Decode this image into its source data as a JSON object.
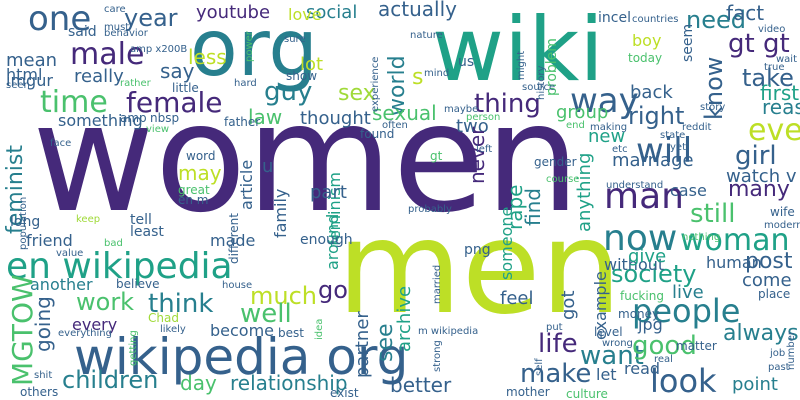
{
  "palette": {
    "dark_purple": "#45297a",
    "blue": "#35618c",
    "teal_blue": "#277f8e",
    "teal": "#1fa187",
    "green": "#4ac16d",
    "light_green": "#a0da39",
    "yellow_green": "#bddf26"
  },
  "words": [
    {
      "text": "women",
      "color": "#45297a"
    },
    {
      "text": "men",
      "color": "#bddf26"
    },
    {
      "text": "wiki",
      "color": "#1fa187"
    },
    {
      "text": "org",
      "color": "#277f8e"
    },
    {
      "text": "wikipedia org",
      "color": "#35618c"
    },
    {
      "text": "en wikipedia",
      "color": "#1fa187"
    },
    {
      "text": "one",
      "color": "#35618c"
    },
    {
      "text": "year",
      "color": "#35618c"
    },
    {
      "text": "male",
      "color": "#45297a"
    },
    {
      "text": "female",
      "color": "#45297a"
    },
    {
      "text": "time",
      "color": "#4ac16d"
    },
    {
      "text": "say",
      "color": "#35618c"
    },
    {
      "text": "less",
      "color": "#bddf26"
    },
    {
      "text": "guy",
      "color": "#277f8e"
    },
    {
      "text": "sex",
      "color": "#a0da39"
    },
    {
      "text": "world",
      "color": "#277f8e"
    },
    {
      "text": "thing",
      "color": "#45297a"
    },
    {
      "text": "way",
      "color": "#35618c"
    },
    {
      "text": "right",
      "color": "#35618c"
    },
    {
      "text": "gt gt",
      "color": "#45297a"
    },
    {
      "text": "take",
      "color": "#35618c"
    },
    {
      "text": "need",
      "color": "#277f8e"
    },
    {
      "text": "even",
      "color": "#bddf26"
    },
    {
      "text": "will",
      "color": "#35618c"
    },
    {
      "text": "man",
      "color": "#45297a"
    },
    {
      "text": "now",
      "color": "#277f8e"
    },
    {
      "text": "people",
      "color": "#277f8e"
    },
    {
      "text": "girl",
      "color": "#35618c"
    },
    {
      "text": "woman",
      "color": "#1fa187"
    },
    {
      "text": "many",
      "color": "#45297a"
    },
    {
      "text": "still",
      "color": "#4ac16d"
    },
    {
      "text": "society",
      "color": "#1fa187"
    },
    {
      "text": "post",
      "color": "#35618c"
    },
    {
      "text": "life",
      "color": "#45297a"
    },
    {
      "text": "want",
      "color": "#277f8e"
    },
    {
      "text": "look",
      "color": "#35618c"
    },
    {
      "text": "good",
      "color": "#4ac16d"
    },
    {
      "text": "make",
      "color": "#35618c"
    },
    {
      "text": "MGTOW",
      "color": "#4ac16d"
    },
    {
      "text": "work",
      "color": "#4ac16d"
    },
    {
      "text": "think",
      "color": "#277f8e"
    },
    {
      "text": "much",
      "color": "#bddf26"
    },
    {
      "text": "well",
      "color": "#4ac16d"
    },
    {
      "text": "go",
      "color": "#45297a"
    },
    {
      "text": "children",
      "color": "#277f8e"
    },
    {
      "text": "relationship",
      "color": "#277f8e"
    },
    {
      "text": "day",
      "color": "#4ac16d"
    },
    {
      "text": "better",
      "color": "#35618c"
    },
    {
      "text": "point",
      "color": "#277f8e"
    },
    {
      "text": "always",
      "color": "#277f8e"
    },
    {
      "text": "see",
      "color": "#277f8e"
    },
    {
      "text": "feminist",
      "color": "#277f8e"
    },
    {
      "text": "going",
      "color": "#35618c"
    },
    {
      "text": "youtube",
      "color": "#45297a"
    },
    {
      "text": "social",
      "color": "#277f8e"
    },
    {
      "text": "actually",
      "color": "#35618c"
    },
    {
      "text": "fact",
      "color": "#35618c"
    },
    {
      "text": "know",
      "color": "#35618c"
    },
    {
      "text": "first",
      "color": "#1fa187"
    },
    {
      "text": "reason",
      "color": "#277f8e"
    },
    {
      "text": "back",
      "color": "#35618c"
    },
    {
      "text": "law",
      "color": "#4ac16d"
    },
    {
      "text": "thought",
      "color": "#35618c"
    },
    {
      "text": "lot",
      "color": "#bddf26"
    },
    {
      "text": "sexual",
      "color": "#4ac16d"
    },
    {
      "text": "love",
      "color": "#bddf26"
    },
    {
      "text": "mean",
      "color": "#35618c"
    },
    {
      "text": "imgur",
      "color": "#35618c"
    },
    {
      "text": "html",
      "color": "#35618c"
    },
    {
      "text": "really",
      "color": "#35618c"
    },
    {
      "text": "something",
      "color": "#35618c"
    },
    {
      "text": "two",
      "color": "#35618c"
    },
    {
      "text": "may",
      "color": "#bddf26"
    },
    {
      "text": "article",
      "color": "#35618c"
    },
    {
      "text": "feminism",
      "color": "#1fa187"
    },
    {
      "text": "around",
      "color": "#1fa187"
    },
    {
      "text": "part",
      "color": "#35618c"
    },
    {
      "text": "never",
      "color": "#45297a"
    },
    {
      "text": "rape",
      "color": "#1fa187"
    },
    {
      "text": "find",
      "color": "#277f8e"
    },
    {
      "text": "someone",
      "color": "#1fa187"
    },
    {
      "text": "marriage",
      "color": "#35618c"
    },
    {
      "text": "watch v",
      "color": "#35618c"
    },
    {
      "text": "case",
      "color": "#35618c"
    },
    {
      "text": "new",
      "color": "#1fa187"
    },
    {
      "text": "anything",
      "color": "#1fa187"
    },
    {
      "text": "without",
      "color": "#35618c"
    },
    {
      "text": "human",
      "color": "#35618c"
    },
    {
      "text": "give",
      "color": "#1fa187"
    },
    {
      "text": "live",
      "color": "#277f8e"
    },
    {
      "text": "come",
      "color": "#35618c"
    },
    {
      "text": "got",
      "color": "#35618c"
    },
    {
      "text": "feel",
      "color": "#35618c"
    },
    {
      "text": "example",
      "color": "#35618c"
    },
    {
      "text": "archive",
      "color": "#1fa187"
    },
    {
      "text": "partner",
      "color": "#35618c"
    },
    {
      "text": "another",
      "color": "#277f8e"
    },
    {
      "text": "every",
      "color": "#45297a"
    },
    {
      "text": "become",
      "color": "#35618c"
    },
    {
      "text": "made",
      "color": "#35618c"
    },
    {
      "text": "friend",
      "color": "#35618c"
    },
    {
      "text": "family",
      "color": "#35618c"
    },
    {
      "text": "enough",
      "color": "#35618c"
    },
    {
      "text": "let",
      "color": "#35618c"
    },
    {
      "text": "read",
      "color": "#35618c"
    },
    {
      "text": "png",
      "color": "#35618c"
    },
    {
      "text": "jpg",
      "color": "#35618c"
    },
    {
      "text": "u",
      "color": "#35618c"
    },
    {
      "text": "s",
      "color": "#bddf26"
    },
    {
      "text": "group",
      "color": "#4ac16d"
    },
    {
      "text": "problem",
      "color": "#4ac16d"
    },
    {
      "text": "boy",
      "color": "#bddf26"
    },
    {
      "text": "seem",
      "color": "#35618c"
    },
    {
      "text": "incel",
      "color": "#35618c"
    },
    {
      "text": "today",
      "color": "#4ac16d"
    },
    {
      "text": "said",
      "color": "#35618c"
    },
    {
      "text": "must",
      "color": "#35618c"
    },
    {
      "text": "care",
      "color": "#35618c"
    },
    {
      "text": "behavior",
      "color": "#35618c"
    },
    {
      "text": "amp x200B",
      "color": "#35618c"
    },
    {
      "text": "power",
      "color": "#4ac16d"
    },
    {
      "text": "sure",
      "color": "#35618c"
    },
    {
      "text": "nature",
      "color": "#35618c"
    },
    {
      "text": "history",
      "color": "#35618c"
    },
    {
      "text": "might",
      "color": "#35618c"
    },
    {
      "text": "experience",
      "color": "#35618c"
    },
    {
      "text": "mind",
      "color": "#35618c"
    },
    {
      "text": "show",
      "color": "#35618c"
    },
    {
      "text": "us",
      "color": "#35618c"
    },
    {
      "text": "countries",
      "color": "#35618c"
    },
    {
      "text": "video",
      "color": "#35618c"
    },
    {
      "text": "true",
      "color": "#35618c"
    },
    {
      "text": "wait",
      "color": "#35618c"
    },
    {
      "text": "story",
      "color": "#35618c"
    },
    {
      "text": "reddit",
      "color": "#35618c"
    },
    {
      "text": "state",
      "color": "#35618c"
    },
    {
      "text": "making",
      "color": "#35618c"
    },
    {
      "text": "end",
      "color": "#4ac16d"
    },
    {
      "text": "source",
      "color": "#35618c"
    },
    {
      "text": "person",
      "color": "#4ac16d"
    },
    {
      "text": "maybe",
      "color": "#35618c"
    },
    {
      "text": "often",
      "color": "#35618c"
    },
    {
      "text": "found",
      "color": "#35618c"
    },
    {
      "text": "little",
      "color": "#35618c"
    },
    {
      "text": "rather",
      "color": "#4ac16d"
    },
    {
      "text": "hard",
      "color": "#35618c"
    },
    {
      "text": "seen",
      "color": "#35618c"
    },
    {
      "text": "amp",
      "color": "#35618c"
    },
    {
      "text": "nbsp",
      "color": "#35618c"
    },
    {
      "text": "father",
      "color": "#35618c"
    },
    {
      "text": "view",
      "color": "#4ac16d"
    },
    {
      "text": "face",
      "color": "#35618c"
    },
    {
      "text": "word",
      "color": "#35618c"
    },
    {
      "text": "great",
      "color": "#4ac16d"
    },
    {
      "text": "en m",
      "color": "#35618c"
    },
    {
      "text": "population",
      "color": "#35618c"
    },
    {
      "text": "long",
      "color": "#35618c"
    },
    {
      "text": "keep",
      "color": "#a0da39"
    },
    {
      "text": "tell",
      "color": "#35618c"
    },
    {
      "text": "least",
      "color": "#35618c"
    },
    {
      "text": "bad",
      "color": "#4ac16d"
    },
    {
      "text": "value",
      "color": "#35618c"
    },
    {
      "text": "believe",
      "color": "#35618c"
    },
    {
      "text": "different",
      "color": "#35618c"
    },
    {
      "text": "house",
      "color": "#35618c"
    },
    {
      "text": "Chad",
      "color": "#a0da39"
    },
    {
      "text": "getting",
      "color": "#4ac16d"
    },
    {
      "text": "likely",
      "color": "#35618c"
    },
    {
      "text": "everything",
      "color": "#35618c"
    },
    {
      "text": "shit",
      "color": "#35618c"
    },
    {
      "text": "others",
      "color": "#35618c"
    },
    {
      "text": "best",
      "color": "#35618c"
    },
    {
      "text": "idea",
      "color": "#4ac16d"
    },
    {
      "text": "exist",
      "color": "#35618c"
    },
    {
      "text": "strong",
      "color": "#35618c"
    },
    {
      "text": "m wikipedia",
      "color": "#35618c"
    },
    {
      "text": "married",
      "color": "#35618c"
    },
    {
      "text": "mother",
      "color": "#35618c"
    },
    {
      "text": "self",
      "color": "#35618c"
    },
    {
      "text": "culture",
      "color": "#4ac16d"
    },
    {
      "text": "put",
      "color": "#35618c"
    },
    {
      "text": "wrong",
      "color": "#35618c"
    },
    {
      "text": "level",
      "color": "#35618c"
    },
    {
      "text": "money",
      "color": "#35618c"
    },
    {
      "text": "real",
      "color": "#35618c"
    },
    {
      "text": "matter",
      "color": "#35618c"
    },
    {
      "text": "past",
      "color": "#35618c"
    },
    {
      "text": "job",
      "color": "#35618c"
    },
    {
      "text": "number",
      "color": "#35618c"
    },
    {
      "text": "place",
      "color": "#35618c"
    },
    {
      "text": "fucking",
      "color": "#4ac16d"
    },
    {
      "text": "nothing",
      "color": "#4ac16d"
    },
    {
      "text": "wife",
      "color": "#35618c"
    },
    {
      "text": "modern",
      "color": "#35618c"
    },
    {
      "text": "understand",
      "color": "#35618c"
    },
    {
      "text": "gender",
      "color": "#35618c"
    },
    {
      "text": "course",
      "color": "#4ac16d"
    },
    {
      "text": "probably",
      "color": "#35618c"
    },
    {
      "text": "left",
      "color": "#35618c"
    },
    {
      "text": "etc",
      "color": "#35618c"
    },
    {
      "text": "yet",
      "color": "#35618c"
    },
    {
      "text": "gt",
      "color": "#4ac16d"
    }
  ]
}
